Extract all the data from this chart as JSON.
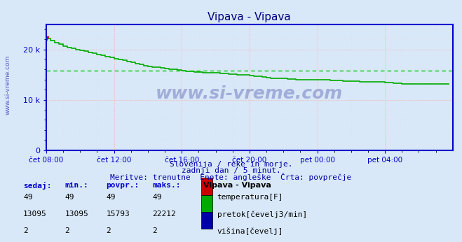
{
  "title": "Vipava - Vipava",
  "background_color": "#d8e8f8",
  "plot_bg_color": "#d8e8f8",
  "grid_color_major": "#ffaaaa",
  "grid_color_minor": "#ffdddd",
  "xlim_hours": [
    0,
    24
  ],
  "ylim": [
    0,
    25000
  ],
  "yticks": [
    0,
    10000,
    20000
  ],
  "ytick_labels": [
    "0",
    "10 k",
    "20 k"
  ],
  "xtick_labels": [
    "čet 08:00",
    "čet 12:00",
    "čet 16:00",
    "čet 20:00",
    "pet 00:00",
    "pet 04:00"
  ],
  "xtick_positions": [
    0,
    4,
    8,
    12,
    16,
    20
  ],
  "axis_color": "#0000cc",
  "tick_color": "#0000cc",
  "label_color": "#0000cc",
  "avg_line_value": 15793,
  "avg_line_color": "#00cc00",
  "line_color": "#00aa00",
  "temp_color": "#cc0000",
  "height_color": "#0000aa",
  "subtitle1": "Slovenija / reke in morje.",
  "subtitle2": "zadnji dan / 5 minut.",
  "subtitle3": "Meritve: trenutne  Enote: angleške  Črta: povprečje",
  "watermark": "www.si-vreme.com",
  "legend_title": "Vipava - Vipava",
  "legend_items": [
    {
      "label": "temperatura[F]",
      "color": "#cc0000"
    },
    {
      "label": "pretok[čevelj3/min]",
      "color": "#00aa00"
    },
    {
      "label": "višina[čevelj]",
      "color": "#0000aa"
    }
  ],
  "table_headers": [
    "sedaj:",
    "min.:",
    "povpr.:",
    "maks.:"
  ],
  "table_rows": [
    [
      "49",
      "49",
      "49",
      "49"
    ],
    [
      "13095",
      "13095",
      "15793",
      "22212"
    ],
    [
      "2",
      "2",
      "2",
      "2"
    ]
  ],
  "flow_data_x": [
    0,
    0.083,
    0.25,
    0.5,
    0.75,
    1.0,
    1.25,
    1.5,
    1.75,
    2.0,
    2.25,
    2.5,
    2.75,
    3.0,
    3.25,
    3.5,
    3.75,
    4.0,
    4.25,
    4.5,
    4.75,
    5.0,
    5.25,
    5.5,
    5.75,
    6.0,
    6.25,
    6.5,
    6.75,
    7.0,
    7.25,
    7.5,
    7.75,
    8.0,
    8.25,
    8.5,
    8.75,
    9.0,
    9.25,
    9.5,
    9.75,
    10.0,
    10.25,
    10.5,
    10.75,
    11.0,
    11.25,
    11.5,
    11.75,
    12.0,
    12.25,
    12.5,
    12.75,
    13.0,
    13.25,
    13.5,
    13.75,
    14.0,
    14.25,
    14.5,
    14.75,
    15.0,
    15.25,
    15.5,
    15.75,
    16.0,
    16.25,
    16.5,
    16.75,
    17.0,
    17.25,
    17.5,
    17.75,
    18.0,
    18.25,
    18.5,
    18.75,
    19.0,
    19.25,
    19.5,
    19.75,
    20.0,
    20.25,
    20.5,
    20.75,
    21.0,
    21.25,
    21.5,
    21.75,
    22.0,
    22.25,
    22.5,
    22.75,
    23.0,
    23.25,
    23.5,
    23.75
  ],
  "flow_data_y": [
    22212,
    22212,
    21800,
    21400,
    21000,
    20600,
    20400,
    20200,
    20000,
    19800,
    19600,
    19400,
    19200,
    19000,
    18800,
    18600,
    18400,
    18200,
    18000,
    17800,
    17600,
    17400,
    17200,
    17000,
    16800,
    16600,
    16500,
    16400,
    16300,
    16200,
    16100,
    16000,
    15900,
    15800,
    15700,
    15600,
    15500,
    15500,
    15400,
    15400,
    15300,
    15300,
    15200,
    15200,
    15100,
    15100,
    15000,
    15000,
    14900,
    14800,
    14700,
    14600,
    14500,
    14400,
    14300,
    14200,
    14200,
    14200,
    14100,
    14100,
    14000,
    13900,
    13900,
    13900,
    13900,
    13900,
    13900,
    13900,
    13800,
    13800,
    13800,
    13700,
    13700,
    13700,
    13650,
    13600,
    13600,
    13600,
    13500,
    13500,
    13500,
    13400,
    13400,
    13300,
    13300,
    13200,
    13200,
    13200,
    13200,
    13200,
    13200,
    13200,
    13200,
    13100,
    13095,
    13095,
    13095
  ]
}
